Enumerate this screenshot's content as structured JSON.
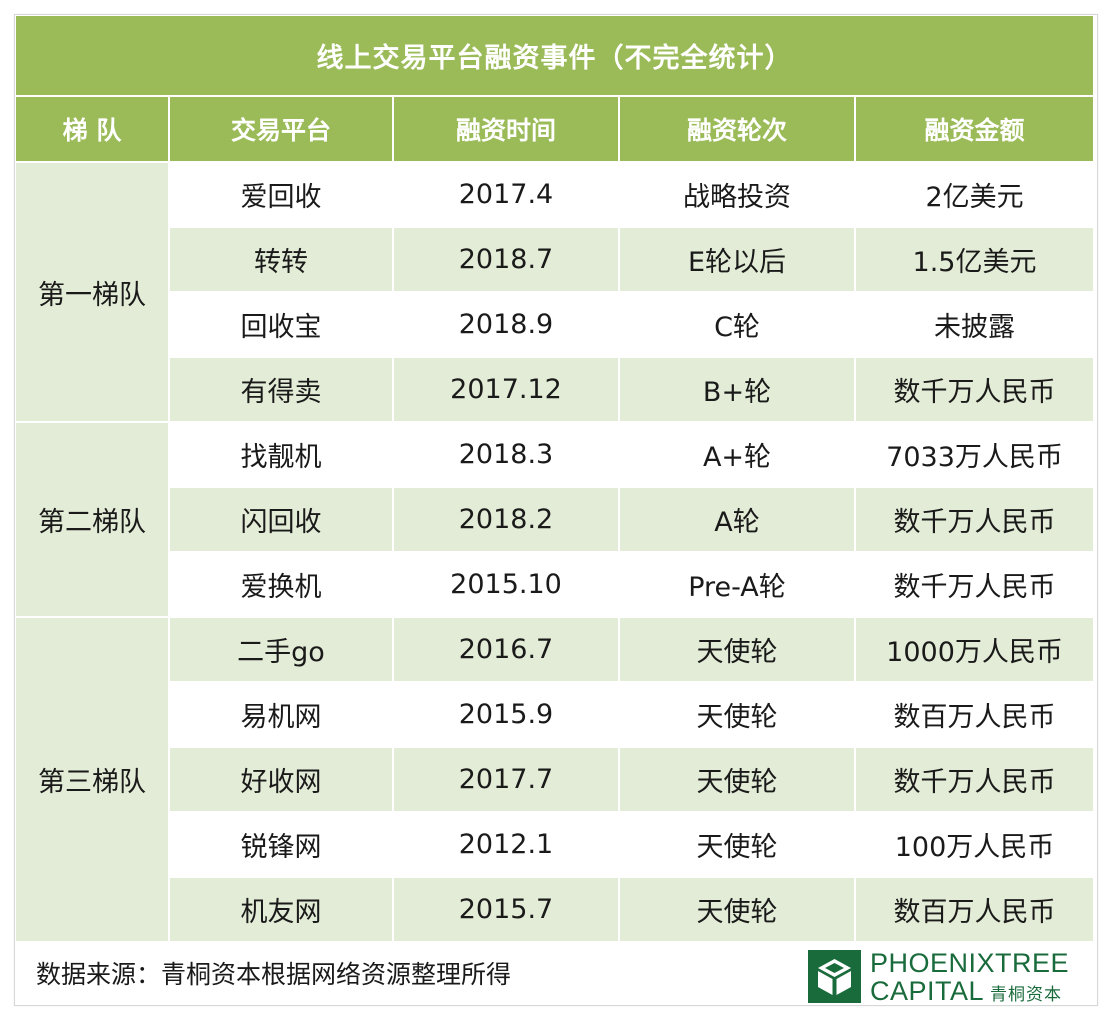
{
  "title": "线上交易平台融资事件（不完全统计）",
  "headers": [
    "梯 队",
    "交易平台",
    "融资时间",
    "融资轮次",
    "融资金额"
  ],
  "tiers": [
    {
      "name": "第一梯队",
      "rows": [
        {
          "platform": "爱回收",
          "time": "2017.4",
          "round": "战略投资",
          "amount": "2亿美元"
        },
        {
          "platform": "转转",
          "time": "2018.7",
          "round": "E轮以后",
          "amount": "1.5亿美元"
        },
        {
          "platform": "回收宝",
          "time": "2018.9",
          "round": "C轮",
          "amount": "未披露"
        },
        {
          "platform": "有得卖",
          "time": "2017.12",
          "round": "B+轮",
          "amount": "数千万人民币"
        }
      ]
    },
    {
      "name": "第二梯队",
      "rows": [
        {
          "platform": "找靓机",
          "time": "2018.3",
          "round": "A+轮",
          "amount": "7033万人民币"
        },
        {
          "platform": "闪回收",
          "time": "2018.2",
          "round": "A轮",
          "amount": "数千万人民币"
        },
        {
          "platform": "爱换机",
          "time": "2015.10",
          "round": "Pre-A轮",
          "amount": "数千万人民币"
        }
      ]
    },
    {
      "name": "第三梯队",
      "rows": [
        {
          "platform": "二手go",
          "time": "2016.7",
          "round": "天使轮",
          "amount": "1000万人民币"
        },
        {
          "platform": "易机网",
          "time": "2015.9",
          "round": "天使轮",
          "amount": "数百万人民币"
        },
        {
          "platform": "好收网",
          "time": "2017.7",
          "round": "天使轮",
          "amount": "数千万人民币"
        },
        {
          "platform": "锐锋网",
          "time": "2012.1",
          "round": "天使轮",
          "amount": "100万人民币"
        },
        {
          "platform": "机友网",
          "time": "2015.7",
          "round": "天使轮",
          "amount": "数百万人民币"
        }
      ]
    }
  ],
  "footer": "数据来源：青桐资本根据网络资源整理所得",
  "logo": {
    "line1": "PHOENIXTREE",
    "line2": "CAPITAL",
    "cn": "青桐资本"
  },
  "colors": {
    "header_green": "#9bbb59",
    "band_green": "#e3ecd6",
    "logo_green": "#1a6b3c"
  }
}
